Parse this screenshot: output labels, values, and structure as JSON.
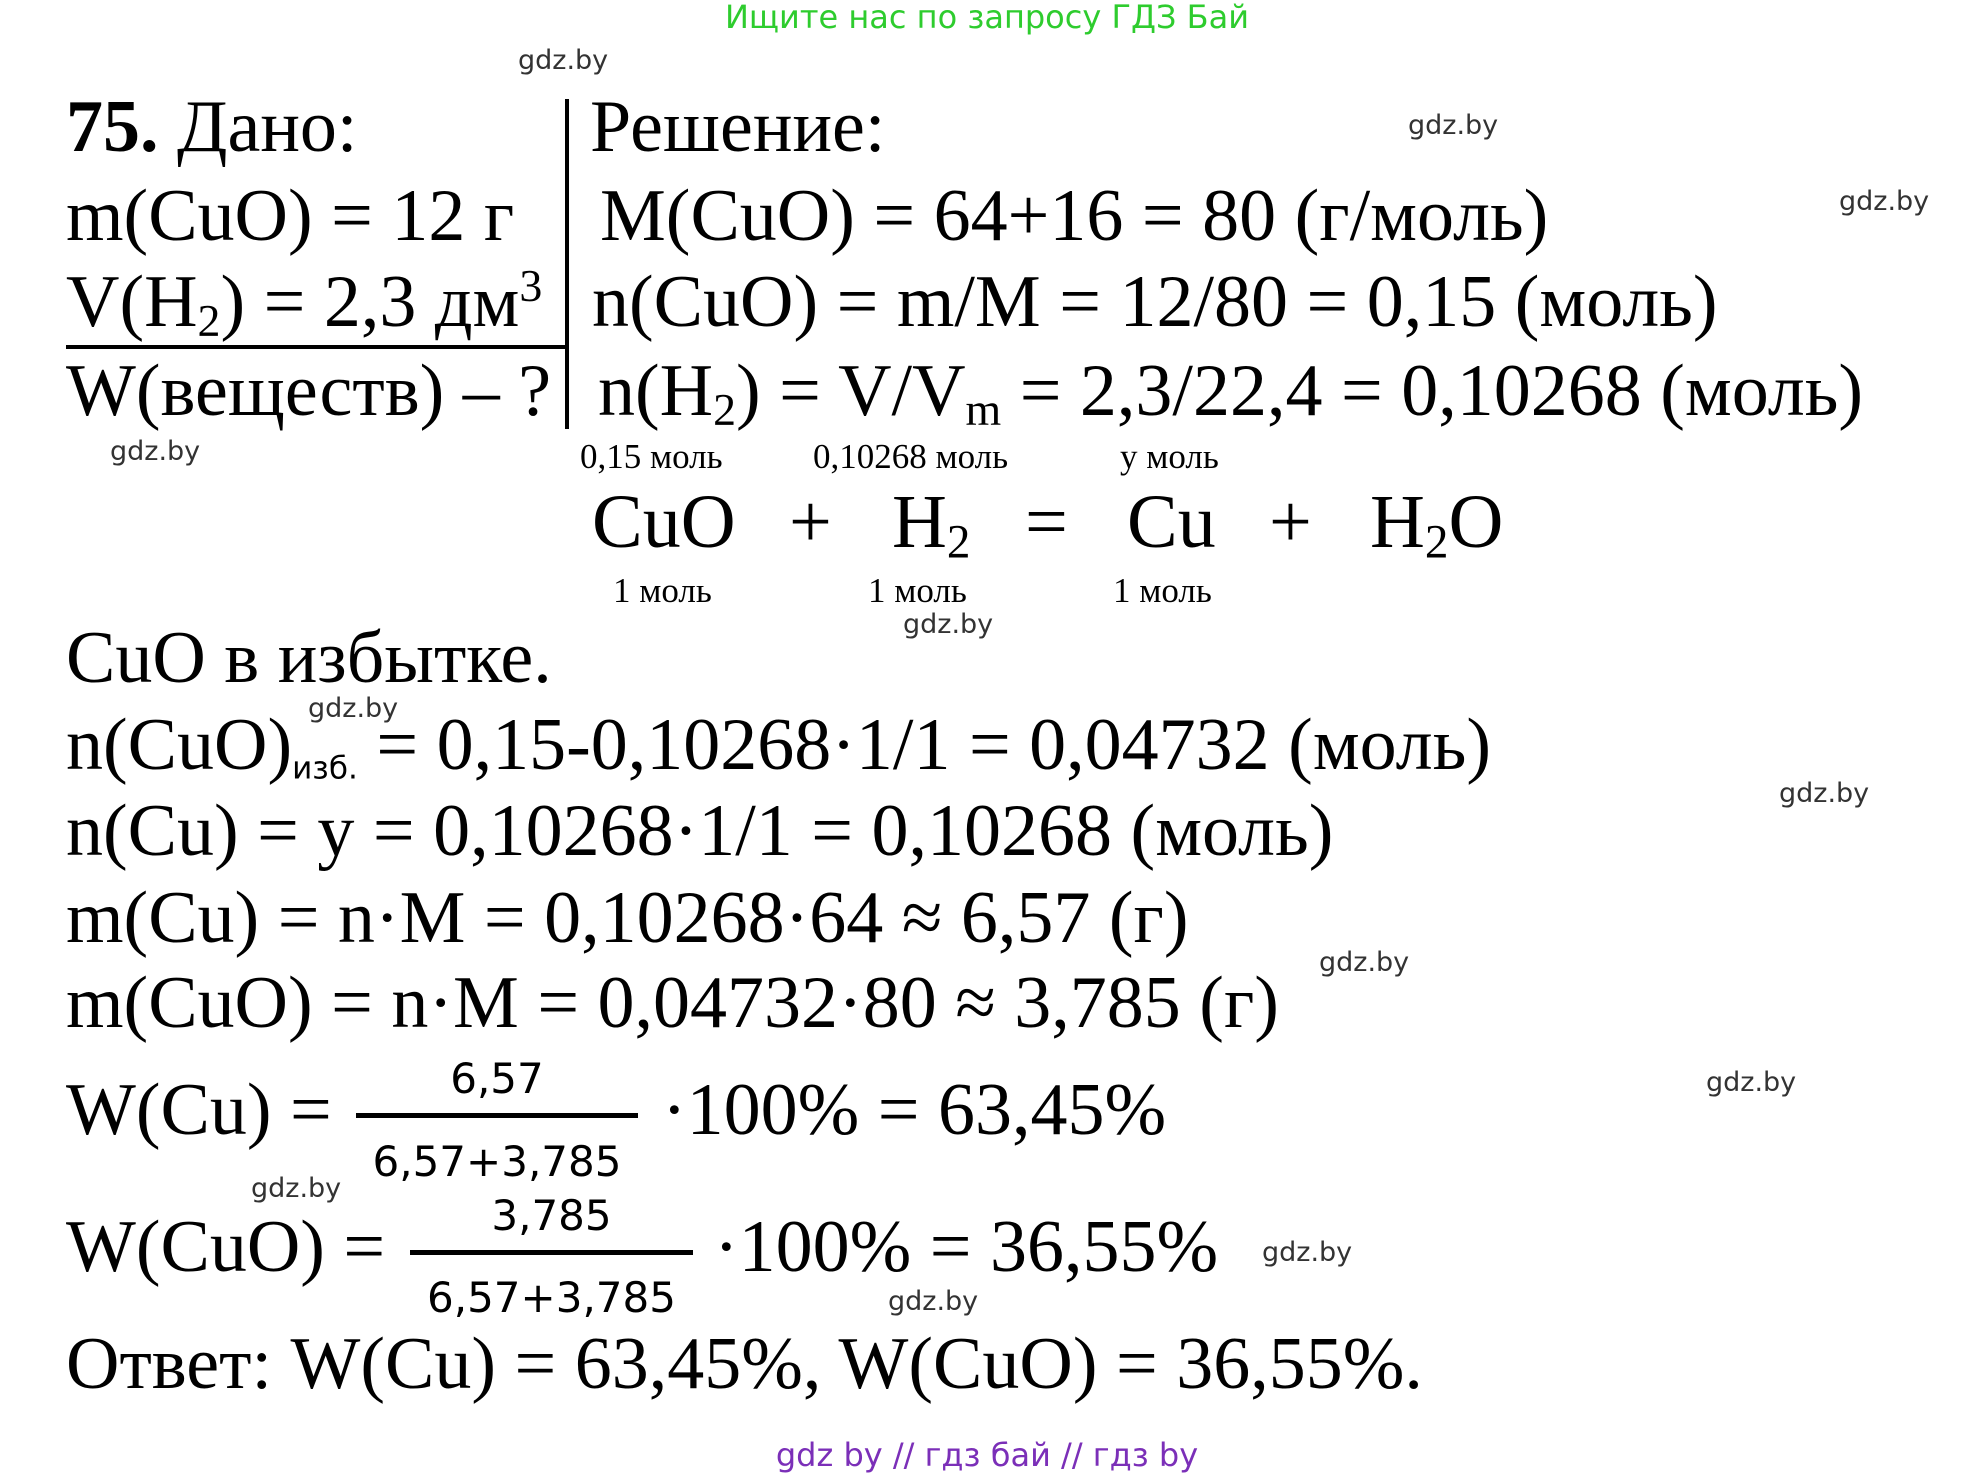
{
  "header": {
    "text": "Ищите нас по запросу ГДЗ Бай",
    "color": "#2ecc2e"
  },
  "footer": {
    "text": "gdz by  //  гдз бай  //  гдз by",
    "color": "#7b2fb8"
  },
  "watermark": "gdz.by",
  "given": {
    "number": "75.",
    "heading": " Дано:",
    "lines": [
      [
        {
          "t": "m(CuO) = 12 г"
        }
      ],
      [
        {
          "t": "V(H"
        },
        {
          "t": "2",
          "s": "sub"
        },
        {
          "t": ") = 2,3 дм"
        },
        {
          "t": "3",
          "s": "sup"
        }
      ],
      [
        {
          "t": "W(веществ) – ?"
        }
      ]
    ]
  },
  "solution": {
    "heading": "Решение:",
    "lines": [
      [
        {
          "t": "M(CuO) = 64+16 = 80 (г/моль)"
        }
      ],
      [
        {
          "t": "n(CuO) = m/M = 12/80 = 0,15 (моль)"
        }
      ],
      [
        {
          "t": "n(H"
        },
        {
          "t": "2",
          "s": "sub"
        },
        {
          "t": ") = V/V"
        },
        {
          "t": "m",
          "s": "sub"
        },
        {
          "t": " = 2,3/22,4 = 0,10268 (моль)"
        }
      ]
    ]
  },
  "equation": {
    "above": [
      "0,15 моль",
      "0,10268 моль",
      "y моль"
    ],
    "terms": [
      [
        {
          "t": "CuO"
        }
      ],
      [
        {
          "t": "+"
        }
      ],
      [
        {
          "t": "H"
        },
        {
          "t": "2",
          "s": "sub"
        }
      ],
      [
        {
          "t": "="
        }
      ],
      [
        {
          "t": "Cu"
        }
      ],
      [
        {
          "t": "+"
        }
      ],
      [
        {
          "t": "H"
        },
        {
          "t": "2",
          "s": "sub"
        },
        {
          "t": "O"
        }
      ]
    ],
    "below": [
      "1 моль",
      "1 моль",
      "1 моль"
    ]
  },
  "calc": {
    "lines": [
      [
        {
          "t": "CuO в избытке."
        }
      ],
      [
        {
          "t": "n(CuO)"
        },
        {
          "t": "изб.",
          "s": "sans-sub"
        },
        {
          "t": " = 0,15-0,10268·1/1 = 0,04732 (моль)"
        }
      ],
      [
        {
          "t": "n(Cu) = y = 0,10268·1/1 = 0,10268 (моль)"
        }
      ],
      [
        {
          "t": "m(Cu) = n·M = 0,10268·64 ≈ 6,57 (г)"
        }
      ],
      [
        {
          "t": "m(CuO) = n·M = 0,04732·80 ≈ 3,785 (г)"
        }
      ]
    ]
  },
  "fractions": [
    {
      "left": "W(Cu) =",
      "numerator": "6,57",
      "denominator": "6,57+3,785",
      "right": "·100% = 63,45%"
    },
    {
      "left": "W(CuO) =",
      "numerator": "3,785",
      "denominator": "6,57+3,785",
      "right": "·100% = 36,55%"
    }
  ],
  "answer": "Ответ: W(Cu) = 63,45%, W(CuO) = 36,55%."
}
